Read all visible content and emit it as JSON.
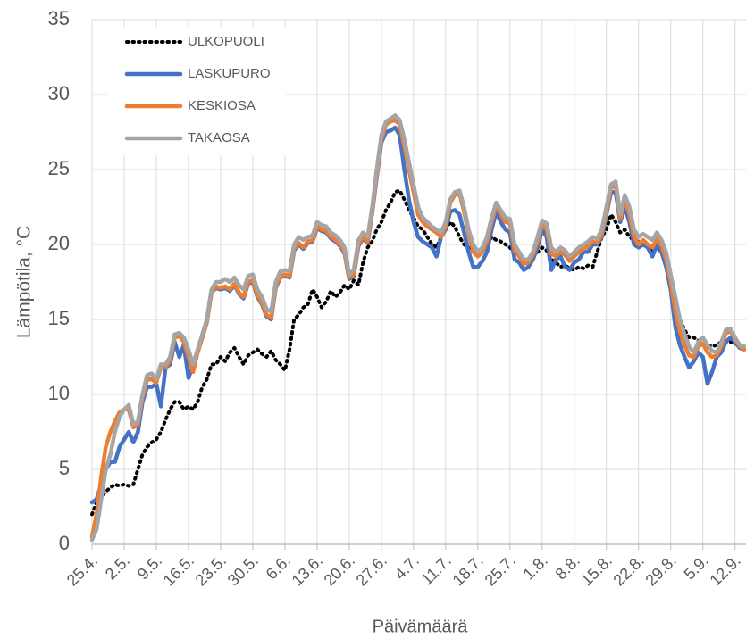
{
  "chart_data": {
    "type": "line",
    "x_label": "Päivämäärä",
    "y_label": "Lämpötila, °C",
    "categories": [
      "25.4.",
      null,
      null,
      null,
      null,
      null,
      null,
      "2.5.",
      null,
      null,
      null,
      null,
      null,
      null,
      "9.5.",
      null,
      null,
      null,
      null,
      null,
      null,
      "16.5.",
      null,
      null,
      null,
      null,
      null,
      null,
      "23.5.",
      null,
      null,
      null,
      null,
      null,
      null,
      "30.5.",
      null,
      null,
      null,
      null,
      null,
      null,
      "6.6.",
      null,
      null,
      null,
      null,
      null,
      null,
      "13.6.",
      null,
      null,
      null,
      null,
      null,
      null,
      "20.6.",
      null,
      null,
      null,
      null,
      null,
      null,
      "27.6.",
      null,
      null,
      null,
      null,
      null,
      null,
      "4.7.",
      null,
      null,
      null,
      null,
      null,
      null,
      "11.7.",
      null,
      null,
      null,
      null,
      null,
      null,
      "18.7.",
      null,
      null,
      null,
      null,
      null,
      null,
      "25.7.",
      null,
      null,
      null,
      null,
      null,
      null,
      "1.8.",
      null,
      null,
      null,
      null,
      null,
      null,
      "8.8.",
      null,
      null,
      null,
      null,
      null,
      null,
      "15.8.",
      null,
      null,
      null,
      null,
      null,
      null,
      "22.8.",
      null,
      null,
      null,
      null,
      null,
      null,
      "29.8.",
      null,
      null,
      null,
      null,
      null,
      null,
      "5.9.",
      null,
      null,
      null,
      null,
      null,
      null,
      "12.9.",
      null,
      null
    ],
    "series": [
      {
        "name": "ULKOPUOLI",
        "color": "#000000",
        "line_style": "dotted",
        "values": [
          2,
          2.8,
          3.2,
          3.5,
          3.8,
          4,
          3.9,
          4,
          3.9,
          4,
          5,
          6,
          6.5,
          6.8,
          7,
          7.5,
          8.3,
          9,
          9.5,
          9.5,
          9,
          9.2,
          9,
          9.5,
          10.5,
          11,
          12,
          12,
          12.5,
          12.2,
          12.8,
          13.1,
          12.5,
          12,
          12.6,
          12.8,
          13,
          12.7,
          12.5,
          12.9,
          12.3,
          12,
          11.6,
          13,
          15,
          15.3,
          15.8,
          16,
          17,
          16.5,
          15.8,
          16.2,
          16.9,
          16.5,
          16.8,
          17.3,
          17,
          17.6,
          17.3,
          18.8,
          19.8,
          20.2,
          21,
          21.5,
          22.3,
          22.8,
          23.5,
          23.6,
          23,
          22.3,
          21.8,
          21.2,
          21,
          20.5,
          20,
          19.8,
          20.5,
          21,
          21.5,
          21.2,
          20.5,
          20,
          19.8,
          19.5,
          19.2,
          19.5,
          20,
          20.5,
          20.3,
          20.2,
          20,
          19.8,
          19.5,
          19.2,
          19,
          19,
          19.2,
          19.5,
          19.8,
          19.6,
          19,
          18.8,
          18.5,
          18.6,
          18.4,
          18.3,
          18.5,
          18.4,
          18.6,
          18.5,
          19.5,
          20.5,
          21,
          22,
          21.5,
          20.8,
          21,
          20.5,
          20.3,
          20.2,
          20,
          19.8,
          19.5,
          19.8,
          19.5,
          19,
          17.5,
          16,
          15,
          14.3,
          13.8,
          13.8,
          13.6,
          13.4,
          13.3,
          13.2,
          13.3,
          13.5,
          13.5,
          13.5,
          13.4,
          13.2,
          13
        ]
      },
      {
        "name": "LASKUPURO",
        "color": "#4472c4",
        "line_style": "solid",
        "values": [
          2.8,
          3,
          4,
          5,
          5.5,
          5.5,
          6.5,
          7,
          7.5,
          6.8,
          7.5,
          9.5,
          10.5,
          10.5,
          10.7,
          9.2,
          11.8,
          12,
          13.5,
          12.5,
          13.3,
          11.1,
          12,
          12.8,
          13.8,
          14.8,
          16.8,
          17.1,
          17,
          17.1,
          16.9,
          17.3,
          16.7,
          16.4,
          17.4,
          17.5,
          16.5,
          16,
          15.2,
          15,
          17.1,
          17.8,
          17.9,
          17.8,
          19.6,
          20,
          19.7,
          20.1,
          20.2,
          21.1,
          20.9,
          20.8,
          20.4,
          20.2,
          19.9,
          19.4,
          17.7,
          17.9,
          19.9,
          20.4,
          20.1,
          22.1,
          24.5,
          26.8,
          27.5,
          27.6,
          27.8,
          27.3,
          25,
          23,
          21.5,
          20.5,
          20.2,
          20,
          19.8,
          19.2,
          20.5,
          21,
          22.2,
          22.3,
          22,
          20.8,
          19.5,
          18.5,
          18.5,
          18.9,
          19.5,
          21,
          22.2,
          21.5,
          21,
          20.8,
          19,
          18.8,
          18.3,
          18.5,
          19,
          19.8,
          21,
          20.5,
          18.3,
          19,
          19.2,
          18.5,
          18.3,
          18.8,
          19,
          19.5,
          19.5,
          20,
          20,
          20.5,
          22,
          23.5,
          23.5,
          21.5,
          22.5,
          21.5,
          20,
          19.8,
          20,
          19.8,
          19.2,
          20,
          19.5,
          18.5,
          17,
          14.5,
          13.3,
          12.5,
          11.8,
          12.2,
          12.8,
          12.5,
          10.7,
          11.5,
          12.5,
          12.8,
          13.5,
          13.8,
          13.5,
          13.1,
          13
        ]
      },
      {
        "name": "KESKIOSA",
        "color": "#ed7d31",
        "line_style": "solid",
        "values": [
          0.5,
          2,
          4.5,
          6.5,
          7.5,
          8.2,
          8.8,
          9,
          9,
          7.8,
          8,
          9.8,
          11,
          11,
          10.8,
          11.8,
          11.8,
          12.3,
          13.8,
          13.9,
          13.5,
          12.5,
          11.5,
          12.8,
          13.8,
          14.8,
          16.8,
          17.2,
          17.1,
          17.2,
          17,
          17.4,
          16.8,
          16.5,
          17.5,
          17.6,
          16.6,
          16.1,
          15.3,
          15.1,
          17.2,
          17.9,
          18,
          17.9,
          19.7,
          20.1,
          19.8,
          20.2,
          20.3,
          21.2,
          21,
          20.9,
          20.5,
          20.3,
          20,
          19.5,
          17.8,
          18,
          20,
          20.5,
          20.2,
          22.2,
          24.7,
          27,
          28,
          28.2,
          28.3,
          28,
          26.5,
          25,
          23.5,
          22,
          21.5,
          21.2,
          21,
          20.8,
          20.5,
          21.2,
          22.8,
          23.3,
          23.4,
          22.2,
          20.7,
          19.5,
          19.2,
          19.5,
          20.2,
          21.5,
          22.6,
          22,
          21.5,
          21.4,
          19.6,
          19.2,
          18.7,
          18.8,
          19.3,
          20.2,
          21.3,
          21,
          19.4,
          19.2,
          19.5,
          19.3,
          18.9,
          19.2,
          19.5,
          19.7,
          19.9,
          20.2,
          20.1,
          20.7,
          22.2,
          23.8,
          23.9,
          21.7,
          23,
          22,
          20.5,
          20,
          20.3,
          20,
          19.8,
          20.4,
          19.9,
          19,
          17.5,
          15.5,
          14.2,
          13.3,
          12.6,
          12.5,
          13.2,
          13.4,
          12.8,
          12.5,
          12.6,
          13.2,
          14.1,
          14.2,
          13.7,
          13.2,
          13
        ]
      },
      {
        "name": "TAKAOSA",
        "color": "#a5a5a5",
        "line_style": "solid",
        "values": [
          0.3,
          1,
          3,
          5,
          6,
          7.5,
          8.5,
          9,
          9.3,
          8,
          8.2,
          10,
          11.3,
          11.4,
          11,
          12,
          12,
          12.5,
          14,
          14.1,
          13.8,
          13,
          12,
          13,
          14,
          15,
          17,
          17.5,
          17.5,
          17.7,
          17.5,
          17.8,
          17.3,
          17,
          17.9,
          18,
          17,
          16.5,
          15.7,
          15.5,
          17.5,
          18.2,
          18.3,
          18.2,
          20,
          20.5,
          20.3,
          20.5,
          20.6,
          21.5,
          21.3,
          21.2,
          20.8,
          20.6,
          20.3,
          19.8,
          18,
          18.3,
          20.3,
          20.8,
          20.5,
          22.5,
          25,
          27.3,
          28.2,
          28.4,
          28.6,
          28.3,
          27,
          25.5,
          24,
          22.5,
          21.8,
          21.5,
          21.2,
          21,
          20.8,
          21.5,
          23,
          23.5,
          23.6,
          22.5,
          21,
          20,
          19.5,
          19.8,
          20.5,
          21.8,
          22.8,
          22.3,
          21.8,
          21.7,
          20,
          19.5,
          19,
          19,
          19.5,
          20.5,
          21.6,
          21.4,
          19.8,
          19.5,
          19.8,
          19.6,
          19.2,
          19.5,
          19.8,
          20,
          20.2,
          20.5,
          20.4,
          21,
          22.5,
          24,
          24.2,
          22,
          23.3,
          22.5,
          21,
          20.5,
          20.7,
          20.5,
          20.3,
          20.8,
          20.3,
          19.5,
          18,
          16.5,
          15,
          14,
          13.2,
          12.8,
          13.5,
          13.8,
          13.3,
          12.9,
          12.8,
          13.5,
          14.3,
          14.4,
          13.8,
          13.3,
          13.2
        ]
      }
    ],
    "ylim": [
      0,
      35
    ],
    "yticks": [
      0,
      5,
      10,
      15,
      20,
      25,
      30,
      35
    ],
    "grid": true,
    "legend": "top-left"
  }
}
